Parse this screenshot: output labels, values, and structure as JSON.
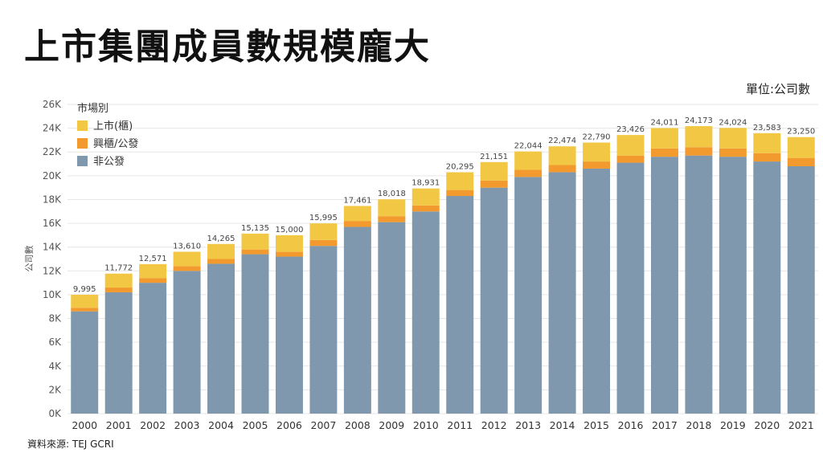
{
  "page": {
    "title": "上市集團成員數規模龐大",
    "unit": "單位:公司數",
    "source": "資料來源: TEJ GCRI"
  },
  "chart_data": {
    "type": "bar",
    "stacked": true,
    "categories": [
      "2000",
      "2001",
      "2002",
      "2003",
      "2004",
      "2005",
      "2006",
      "2007",
      "2008",
      "2009",
      "2010",
      "2011",
      "2012",
      "2013",
      "2014",
      "2015",
      "2016",
      "2017",
      "2018",
      "2019",
      "2020",
      "2021"
    ],
    "series": [
      {
        "name": "非公發",
        "color": "#7f98ad",
        "values": [
          8600,
          10200,
          11000,
          12000,
          12600,
          13400,
          13200,
          14100,
          15700,
          16100,
          17000,
          18300,
          19000,
          19900,
          20300,
          20600,
          21100,
          21600,
          21700,
          21600,
          21200,
          20800
        ]
      },
      {
        "name": "興櫃/公發",
        "color": "#f29a2e",
        "values": [
          300,
          400,
          400,
          400,
          400,
          400,
          400,
          500,
          500,
          500,
          500,
          500,
          600,
          600,
          600,
          600,
          600,
          700,
          700,
          700,
          700,
          700
        ]
      },
      {
        "name": "上市(櫃)",
        "color": "#f2c744",
        "values": [
          1095,
          1172,
          1171,
          1210,
          1265,
          1335,
          1400,
          1395,
          1261,
          1418,
          1431,
          1495,
          1551,
          1544,
          1574,
          1590,
          1726,
          1711,
          1773,
          1724,
          1683,
          1750
        ]
      }
    ],
    "totals": [
      9995,
      11772,
      12571,
      13610,
      14265,
      15135,
      15000,
      15995,
      17461,
      18018,
      18931,
      20295,
      21151,
      22044,
      22474,
      22790,
      23426,
      24011,
      24173,
      24024,
      23583,
      23250
    ],
    "total_labels": [
      "9,995",
      "11,772",
      "12,571",
      "13,610",
      "14,265",
      "15,135",
      "15,000",
      "15,995",
      "17,461",
      "18,018",
      "18,931",
      "20,295",
      "21,151",
      "22,044",
      "22,474",
      "22,790",
      "23,426",
      "24,011",
      "24,173",
      "24,024",
      "23,583",
      "23,250"
    ],
    "ylabel": "公司數",
    "ylim": [
      0,
      26000
    ],
    "yticks": [
      0,
      2000,
      4000,
      6000,
      8000,
      10000,
      12000,
      14000,
      16000,
      18000,
      20000,
      22000,
      24000,
      26000
    ],
    "ytick_labels": [
      "0K",
      "2K",
      "4K",
      "6K",
      "8K",
      "10K",
      "12K",
      "14K",
      "16K",
      "18K",
      "20K",
      "22K",
      "24K",
      "26K"
    ],
    "grid": true,
    "legend": {
      "title": "市場別",
      "position": "top-left",
      "items": [
        {
          "label": "上市(櫃)",
          "color": "#f2c744"
        },
        {
          "label": "興櫃/公發",
          "color": "#f29a2e"
        },
        {
          "label": "非公發",
          "color": "#7f98ad"
        }
      ]
    }
  }
}
